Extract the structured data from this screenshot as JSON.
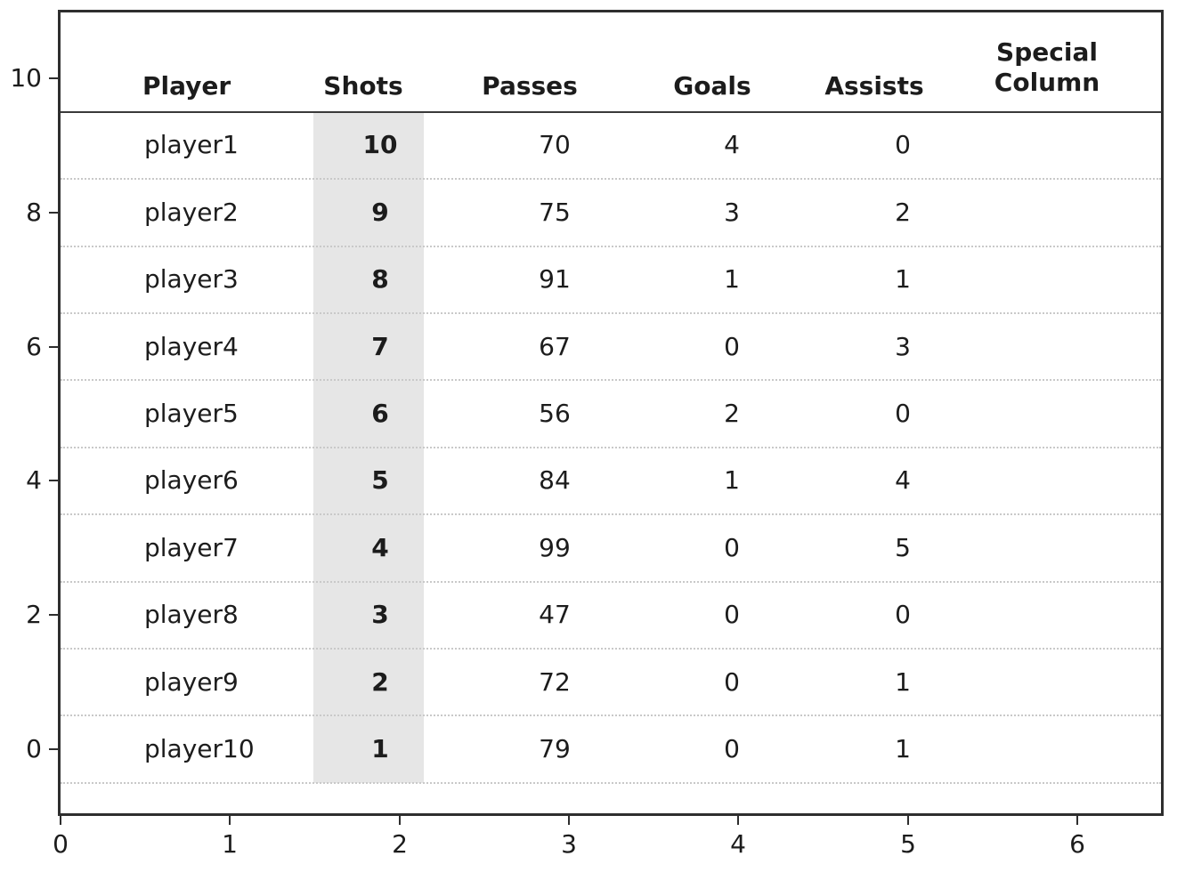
{
  "figure": {
    "background_color": "#ffffff",
    "spine_color": "#2e2e2e",
    "header_rule_color": "#3a3a3a",
    "row_separator_color": "#c9c9c9",
    "text_color": "#1c1c1c"
  },
  "chart_data": {
    "type": "table",
    "title": "",
    "columns": [
      "Player",
      "Shots",
      "Passes",
      "Goals",
      "Assists",
      "Special Column"
    ],
    "highlighted_column": "Shots",
    "highlight_color": "#e6e6e6",
    "rows": [
      [
        "player1",
        "10",
        "70",
        "4",
        "0",
        ""
      ],
      [
        "player2",
        "9",
        "75",
        "3",
        "2",
        ""
      ],
      [
        "player3",
        "8",
        "91",
        "1",
        "1",
        ""
      ],
      [
        "player4",
        "7",
        "67",
        "0",
        "3",
        ""
      ],
      [
        "player5",
        "6",
        "56",
        "2",
        "0",
        ""
      ],
      [
        "player6",
        "5",
        "84",
        "1",
        "4",
        ""
      ],
      [
        "player7",
        "4",
        "99",
        "0",
        "5",
        ""
      ],
      [
        "player8",
        "3",
        "47",
        "0",
        "0",
        ""
      ],
      [
        "player9",
        "2",
        "72",
        "0",
        "1",
        ""
      ],
      [
        "player10",
        "1",
        "79",
        "0",
        "1",
        ""
      ]
    ],
    "x_axis": {
      "ticks": [
        0,
        1,
        2,
        3,
        4,
        5,
        6
      ],
      "range": [
        0,
        6.5
      ]
    },
    "y_axis": {
      "ticks": [
        10,
        8,
        6,
        4,
        2,
        0
      ],
      "range": [
        -1,
        11
      ]
    },
    "grid": "dotted horizontal separators between rows",
    "legend": "none"
  }
}
